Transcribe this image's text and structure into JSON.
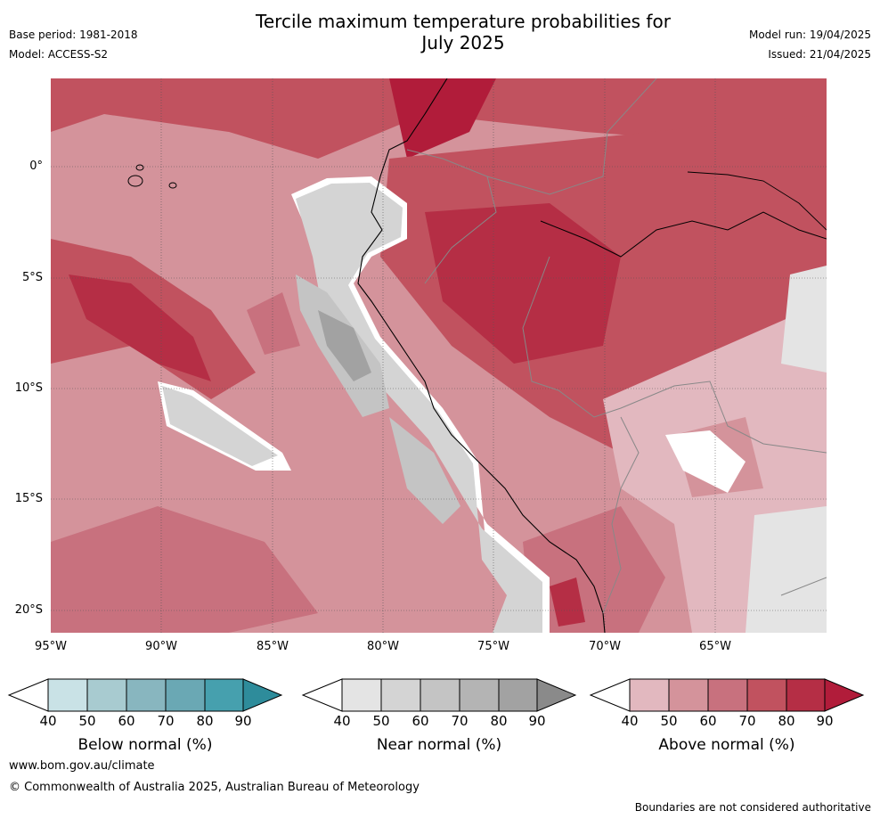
{
  "header": {
    "title_line1": "Tercile maximum temperature probabilities for",
    "title_line2": "July 2025",
    "base_period": "Base period: 1981-2018",
    "model": "Model: ACCESS-S2",
    "model_run": "Model run: 19/04/2025",
    "issued": "Issued: 21/04/2025"
  },
  "map": {
    "lat_labels": [
      "0°",
      "5°S",
      "10°S",
      "15°S",
      "20°S"
    ],
    "lon_labels": [
      "95°W",
      "90°W",
      "85°W",
      "80°W",
      "75°W",
      "70°W",
      "65°W"
    ]
  },
  "colorbars": [
    {
      "id": "below",
      "title": "Below normal (%)",
      "ticks": [
        "40",
        "50",
        "60",
        "70",
        "80",
        "90"
      ],
      "colors": [
        "#ffffff",
        "#c9e2e6",
        "#a8cbd0",
        "#88b6bf",
        "#6aa8b4",
        "#46a0ae",
        "#2e8c9b"
      ]
    },
    {
      "id": "near",
      "title": "Near normal (%)",
      "ticks": [
        "40",
        "50",
        "60",
        "70",
        "80",
        "90"
      ],
      "colors": [
        "#ffffff",
        "#e4e4e4",
        "#d4d4d4",
        "#c4c4c4",
        "#b4b4b4",
        "#a2a2a2",
        "#8a8a8a"
      ]
    },
    {
      "id": "above",
      "title": "Above normal (%)",
      "ticks": [
        "40",
        "50",
        "60",
        "70",
        "80",
        "90"
      ],
      "colors": [
        "#ffffff",
        "#e2b8bf",
        "#d4939b",
        "#c8717e",
        "#c1525f",
        "#b52e45",
        "#b11c3a"
      ]
    }
  ],
  "footer": {
    "website": "www.bom.gov.au/climate",
    "copyright": "© Commonwealth of Australia 2025, Australian Bureau of Meteorology",
    "disclaimer": "Boundaries are not considered authoritative"
  }
}
